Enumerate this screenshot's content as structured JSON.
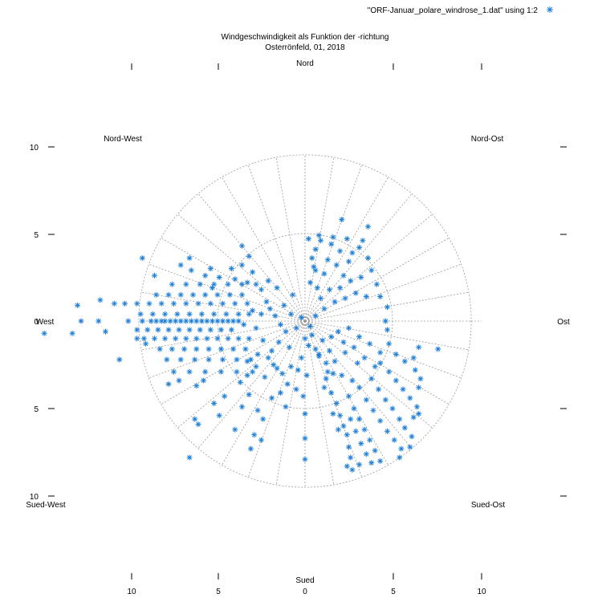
{
  "chart_data": {
    "type": "scatter",
    "projection": "polar",
    "title": "Windgeschwindigkeit als Funktion der -richtung",
    "subtitle": "Osterrönfeld, 01, 2018",
    "legend": {
      "label": "\"ORF-Januar_polare_windrose_1.dat\" using 1:2",
      "placement": "top-right",
      "marker": "asterisk",
      "color": "#1f7fd6"
    },
    "compass_labels": {
      "north": "Nord",
      "south": "Sued",
      "east": "Ost",
      "west": "West",
      "north_west": "Nord-West",
      "north_east": "Nord-Ost",
      "south_west": "Sued-West",
      "south_east": "Sued-Ost"
    },
    "y_ticks_left": [
      "10",
      "5",
      "0",
      "5",
      "10"
    ],
    "x_ticks_bottom": [
      "10",
      "5",
      "0",
      "5",
      "10"
    ],
    "grid": true,
    "range": {
      "x": [
        -10,
        10
      ],
      "y": [
        -10,
        10
      ]
    },
    "rings": [
      5,
      9.5
    ],
    "spoke_step_deg": 10,
    "series": [
      {
        "color": "#1f7fd6",
        "points": [
          [
            -14.9,
            -0.7
          ],
          [
            -13.3,
            -0.7
          ],
          [
            -12.8,
            0
          ],
          [
            -11.8,
            0
          ],
          [
            -11.4,
            -0.6
          ],
          [
            -13,
            0.9
          ],
          [
            -11.7,
            1.2
          ],
          [
            -10.6,
            -2.2
          ],
          [
            -10.1,
            0
          ],
          [
            -9.6,
            -1
          ],
          [
            -9.3,
            0
          ],
          [
            -9.1,
            -1.3
          ],
          [
            -8.8,
            0
          ],
          [
            -8.5,
            0
          ],
          [
            -8.2,
            0
          ],
          [
            -8,
            0
          ],
          [
            -7.7,
            0
          ],
          [
            -7.4,
            0
          ],
          [
            -7.1,
            0
          ],
          [
            -6.8,
            0
          ],
          [
            -6.5,
            0
          ],
          [
            -6.2,
            0
          ],
          [
            -5.9,
            0
          ],
          [
            -5.6,
            0
          ],
          [
            -5.3,
            0
          ],
          [
            -5,
            0
          ],
          [
            -4.7,
            0
          ],
          [
            -4.4,
            0
          ],
          [
            -4.1,
            0
          ],
          [
            -3.8,
            0
          ],
          [
            -9.6,
            -0.5
          ],
          [
            -9,
            -0.5
          ],
          [
            -8.4,
            -0.5
          ],
          [
            -7.8,
            -0.5
          ],
          [
            -7.2,
            -0.5
          ],
          [
            -6.6,
            -0.5
          ],
          [
            -6,
            -0.5
          ],
          [
            -5.4,
            -0.5
          ],
          [
            -4.8,
            -0.5
          ],
          [
            -4.2,
            -0.5
          ],
          [
            -9.4,
            0.4
          ],
          [
            -8.7,
            0.4
          ],
          [
            -8,
            0.4
          ],
          [
            -7.3,
            0.4
          ],
          [
            -6.6,
            0.4
          ],
          [
            -5.9,
            0.4
          ],
          [
            -5.2,
            0.4
          ],
          [
            -4.5,
            0.4
          ],
          [
            -3.8,
            0.4
          ],
          [
            -3.2,
            0.4
          ],
          [
            -10.9,
            1
          ],
          [
            -10.3,
            1
          ],
          [
            -9.6,
            1
          ],
          [
            -8.9,
            1
          ],
          [
            -8.2,
            1
          ],
          [
            -7.5,
            1
          ],
          [
            -6.8,
            1
          ],
          [
            -6.1,
            1
          ],
          [
            -5.4,
            1
          ],
          [
            -4.7,
            1
          ],
          [
            -4,
            1
          ],
          [
            -3.3,
            1
          ],
          [
            -9.2,
            -1
          ],
          [
            -8.6,
            -1
          ],
          [
            -8,
            -1
          ],
          [
            -7.4,
            -1
          ],
          [
            -6.8,
            -1
          ],
          [
            -6.2,
            -1
          ],
          [
            -5.6,
            -1
          ],
          [
            -5,
            -1
          ],
          [
            -4.4,
            -1
          ],
          [
            -3.8,
            -1
          ],
          [
            -3.2,
            -1
          ],
          [
            -8.5,
            1.5
          ],
          [
            -7.8,
            1.5
          ],
          [
            -7.1,
            1.5
          ],
          [
            -6.4,
            1.5
          ],
          [
            -5.7,
            1.5
          ],
          [
            -5,
            1.5
          ],
          [
            -4.3,
            1.5
          ],
          [
            -3.6,
            1.5
          ],
          [
            -8.3,
            -1.6
          ],
          [
            -7.6,
            -1.6
          ],
          [
            -6.9,
            -1.6
          ],
          [
            -6.2,
            -1.6
          ],
          [
            -5.5,
            -1.6
          ],
          [
            -4.8,
            -1.6
          ],
          [
            -4.1,
            -1.6
          ],
          [
            -3.4,
            -1.6
          ],
          [
            -7.9,
            -2.2
          ],
          [
            -7.1,
            -2.2
          ],
          [
            -6.3,
            -2.2
          ],
          [
            -5.5,
            -2.2
          ],
          [
            -4.7,
            -2.2
          ],
          [
            -3.9,
            -2.2
          ],
          [
            -3.1,
            -2.2
          ],
          [
            -7.6,
            2.1
          ],
          [
            -6.8,
            2.1
          ],
          [
            -6,
            2.1
          ],
          [
            -5.2,
            2.1
          ],
          [
            -4.4,
            2.1
          ],
          [
            -3.6,
            2.1
          ],
          [
            -2.8,
            2.1
          ],
          [
            -7.5,
            -2.9
          ],
          [
            -6.6,
            -2.9
          ],
          [
            -5.7,
            -2.9
          ],
          [
            -4.8,
            -2.9
          ],
          [
            -3.9,
            -2.9
          ],
          [
            -3,
            -2.9
          ],
          [
            -6.5,
            2.9
          ],
          [
            -5.7,
            2.6
          ],
          [
            -4.9,
            2.5
          ],
          [
            -4,
            2.4
          ],
          [
            -3.3,
            2.2
          ],
          [
            -2.5,
            1.8
          ],
          [
            -9.3,
            3.6
          ],
          [
            -8.6,
            2.6
          ],
          [
            -7.1,
            3.2
          ],
          [
            -6.6,
            3.6
          ],
          [
            -7.8,
            -3.6
          ],
          [
            -7.2,
            -3.4
          ],
          [
            -6.2,
            -3.7
          ],
          [
            -5.8,
            -3.4
          ],
          [
            -6.3,
            -5.6
          ],
          [
            -6.1,
            -5.9
          ],
          [
            -4.9,
            -5.4
          ],
          [
            -5.2,
            -4.7
          ],
          [
            -4.6,
            -4.3
          ],
          [
            -3.6,
            -4.9
          ],
          [
            -3.2,
            -4.2
          ],
          [
            -2.7,
            -5.1
          ],
          [
            -2.4,
            -5.6
          ],
          [
            -1.9,
            -4.4
          ],
          [
            -1.1,
            -4.9
          ],
          [
            -3.1,
            -7.3
          ],
          [
            -2.9,
            -6.5
          ],
          [
            -6.6,
            -7.8
          ],
          [
            -4,
            -6.2
          ],
          [
            -2.5,
            -6.8
          ],
          [
            -3.7,
            -3.5
          ],
          [
            -3.3,
            -3.1
          ],
          [
            -2.8,
            -2.6
          ],
          [
            -2.3,
            -3.2
          ],
          [
            -1.8,
            -2.5
          ],
          [
            -1.3,
            -3
          ],
          [
            -0.8,
            -2.6
          ],
          [
            -0.5,
            -3.9
          ],
          [
            -4.2,
            3
          ],
          [
            -3.6,
            3.2
          ],
          [
            -3,
            2.8
          ],
          [
            -2.1,
            2.3
          ],
          [
            -1.6,
            1.9
          ],
          [
            -3.2,
            3.7
          ],
          [
            -3.6,
            4.3
          ],
          [
            -5.4,
            3
          ],
          [
            -5.3,
            1.9
          ],
          [
            -2.2,
            1.1
          ],
          [
            -2,
            0.7
          ],
          [
            -1.7,
            0.3
          ],
          [
            -1.4,
            -0.2
          ],
          [
            -1.1,
            -0.6
          ],
          [
            -0.8,
            0.4
          ],
          [
            -0.5,
            -0.4
          ],
          [
            -0.2,
            0.2
          ],
          [
            0,
            -1
          ],
          [
            0.2,
            -1.4
          ],
          [
            0.4,
            -0.8
          ],
          [
            0.6,
            -1.6
          ],
          [
            0.8,
            -2
          ],
          [
            1,
            -1.1
          ],
          [
            1.2,
            -2.4
          ],
          [
            1.4,
            -1.7
          ],
          [
            1.6,
            -3
          ],
          [
            0.3,
            2.2
          ],
          [
            0.5,
            3.1
          ],
          [
            0.6,
            4.1
          ],
          [
            0.8,
            4.9
          ],
          [
            1.1,
            2.7
          ],
          [
            1.3,
            3.5
          ],
          [
            1.5,
            4.4
          ],
          [
            1.8,
            3.2
          ],
          [
            2,
            4
          ],
          [
            2.2,
            2.6
          ],
          [
            0.9,
            1.3
          ],
          [
            1.1,
            0.7
          ],
          [
            1.4,
            1.8
          ],
          [
            1.7,
            1.1
          ],
          [
            2,
            1.9
          ],
          [
            2.3,
            1.3
          ],
          [
            2.6,
            2.3
          ],
          [
            2.9,
            1.6
          ],
          [
            3.2,
            2.5
          ],
          [
            3.5,
            1.4
          ],
          [
            1.9,
            -0.6
          ],
          [
            2.2,
            -1.2
          ],
          [
            2.5,
            -0.4
          ],
          [
            2.8,
            -1.5
          ],
          [
            3.1,
            -0.9
          ],
          [
            3.4,
            -2.1
          ],
          [
            3.7,
            -1.3
          ],
          [
            4,
            -2.6
          ],
          [
            4.3,
            -1.8
          ],
          [
            0.4,
            3.6
          ],
          [
            0.6,
            2.9
          ],
          [
            0.2,
            4.7
          ],
          [
            0.9,
            4.6
          ],
          [
            1.6,
            4.8
          ],
          [
            2.4,
            4.7
          ],
          [
            3.3,
            4.6
          ],
          [
            2.7,
            3.9
          ],
          [
            3.6,
            5.4
          ],
          [
            2.1,
            5.8
          ],
          [
            1.2,
            -3.3
          ],
          [
            1.5,
            -4.1
          ],
          [
            1.8,
            -4.7
          ],
          [
            2,
            -5.4
          ],
          [
            2.2,
            -6
          ],
          [
            2.4,
            -6.5
          ],
          [
            2.5,
            -7.2
          ],
          [
            2.6,
            -7.8
          ],
          [
            2.4,
            -8.3
          ],
          [
            1.6,
            -5.3
          ],
          [
            1.9,
            -6.2
          ],
          [
            2.6,
            -5.6
          ],
          [
            2.9,
            -6.3
          ],
          [
            3.2,
            -7
          ],
          [
            3.5,
            -7.6
          ],
          [
            2.7,
            -8.5
          ],
          [
            3.1,
            -8.2
          ],
          [
            2.5,
            -4.3
          ],
          [
            2.8,
            -5
          ],
          [
            3.1,
            -5.6
          ],
          [
            3.4,
            -6.2
          ],
          [
            3.7,
            -6.8
          ],
          [
            4,
            -7.4
          ],
          [
            4.3,
            -8
          ],
          [
            3.8,
            -8.1
          ],
          [
            3.1,
            -3.8
          ],
          [
            3.5,
            -4.5
          ],
          [
            3.9,
            -5.1
          ],
          [
            4.3,
            -5.7
          ],
          [
            4.7,
            -6.3
          ],
          [
            5.1,
            -6.8
          ],
          [
            5.5,
            -7.3
          ],
          [
            5.4,
            -7.8
          ],
          [
            3.8,
            -3.3
          ],
          [
            4.2,
            -3.9
          ],
          [
            4.6,
            -4.5
          ],
          [
            5,
            -5
          ],
          [
            5.4,
            -5.6
          ],
          [
            5.7,
            -6.1
          ],
          [
            6.1,
            -6.6
          ],
          [
            6,
            -7.2
          ],
          [
            4.3,
            -2.4
          ],
          [
            4.8,
            -2.9
          ],
          [
            5.2,
            -3.4
          ],
          [
            5.6,
            -3.9
          ],
          [
            6,
            -4.4
          ],
          [
            6.4,
            -4.9
          ],
          [
            6.2,
            -5.5
          ],
          [
            6.5,
            -5.3
          ],
          [
            4.8,
            -1.3
          ],
          [
            5.2,
            -1.9
          ],
          [
            5.7,
            -2.3
          ],
          [
            6.3,
            -2.8
          ],
          [
            6.6,
            -3.3
          ],
          [
            6.2,
            -2.1
          ],
          [
            7.6,
            -1.6
          ],
          [
            6.5,
            -1.5
          ],
          [
            6.5,
            -3.8
          ],
          [
            4.7,
            -0.5
          ],
          [
            4.6,
            0
          ],
          [
            4.7,
            0.8
          ],
          [
            4.3,
            1.4
          ],
          [
            4.1,
            2.1
          ],
          [
            3.8,
            2.9
          ],
          [
            3.6,
            3.6
          ],
          [
            3.1,
            4.2
          ],
          [
            2.5,
            3.4
          ],
          [
            0.8,
            -1.9
          ],
          [
            1.3,
            -2.9
          ],
          [
            1.1,
            -3.8
          ],
          [
            1.7,
            -2.3
          ],
          [
            2.1,
            -3.1
          ],
          [
            2.7,
            -3.4
          ],
          [
            2.3,
            -1.8
          ],
          [
            3,
            -2.4
          ],
          [
            1.5,
            -0.9
          ],
          [
            -0.2,
            -2.1
          ],
          [
            0.1,
            -3.1
          ],
          [
            -0.1,
            -4.3
          ],
          [
            0,
            -5.3
          ],
          [
            0,
            -6.7
          ],
          [
            0,
            -7.9
          ],
          [
            0.3,
            -0.3
          ],
          [
            0.6,
            0.3
          ],
          [
            0.7,
            1.9
          ],
          [
            -1.5,
            -1.2
          ],
          [
            -1.9,
            -1.7
          ],
          [
            -2.4,
            -1.1
          ],
          [
            -2.8,
            -0.4
          ],
          [
            -2.5,
            0.4
          ],
          [
            -3,
            0.6
          ],
          [
            -3.5,
            -0.2
          ],
          [
            -1.2,
            0.9
          ],
          [
            -0.7,
            1.5
          ],
          [
            -0.9,
            -1.5
          ],
          [
            -1.6,
            -2.7
          ],
          [
            -2.1,
            -2.1
          ],
          [
            -2.7,
            -1.9
          ],
          [
            -3.3,
            -2.3
          ],
          [
            -1,
            -3.6
          ],
          [
            -1.4,
            -4.1
          ],
          [
            -0.4,
            -2.8
          ]
        ]
      }
    ]
  }
}
